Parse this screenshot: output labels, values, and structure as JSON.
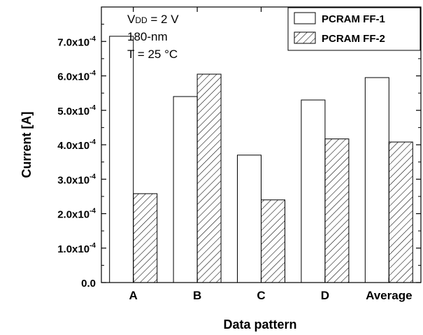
{
  "chart_data": {
    "type": "bar",
    "categories": [
      "A",
      "B",
      "C",
      "D",
      "Average"
    ],
    "series": [
      {
        "name": "PCRAM FF-1",
        "values": [
          0.000715,
          0.00054,
          0.00037,
          0.00053,
          0.000595
        ],
        "fill": "none"
      },
      {
        "name": "PCRAM FF-2",
        "values": [
          0.000258,
          0.000605,
          0.00024,
          0.000417,
          0.000408
        ],
        "fill": "hatch"
      }
    ],
    "xlabel": "Data pattern",
    "ylabel": "Current [A]",
    "ylim": [
      0,
      0.0008
    ],
    "yticks": [
      {
        "mantissa": "0.0",
        "exp": ""
      },
      {
        "mantissa": "1.0x10",
        "exp": "-4"
      },
      {
        "mantissa": "2.0x10",
        "exp": "-4"
      },
      {
        "mantissa": "3.0x10",
        "exp": "-4"
      },
      {
        "mantissa": "4.0x10",
        "exp": "-4"
      },
      {
        "mantissa": "5.0x10",
        "exp": "-4"
      },
      {
        "mantissa": "6.0x10",
        "exp": "-4"
      },
      {
        "mantissa": "7.0x10",
        "exp": "-4"
      }
    ],
    "annotations": {
      "vdd_v": "V",
      "vdd_sub": "DD",
      "vdd_rest": " = 2 V",
      "node": "180-nm",
      "temp": "T = 25 °C"
    },
    "legend_position": "top-right",
    "grid": false,
    "colors": {
      "bar_stroke": "#000000",
      "hatch": "#000000",
      "background": "#ffffff"
    }
  }
}
